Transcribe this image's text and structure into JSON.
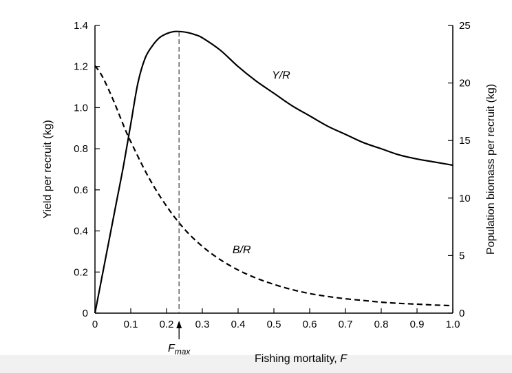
{
  "chart_data": {
    "type": "line",
    "xlabel": "Fishing mortality, ",
    "xlabel_var": "F",
    "ylabel": "Yield per recruit (kg)",
    "y2label": "Population biomass per recruit (kg)",
    "xlim": [
      0,
      1.0
    ],
    "ylim": [
      0,
      1.4
    ],
    "y2lim": [
      0,
      25
    ],
    "x_ticks": [
      0,
      0.1,
      0.2,
      0.3,
      0.4,
      0.5,
      0.6,
      0.7,
      0.8,
      0.9,
      1.0
    ],
    "x_tick_labels": [
      "0",
      "0.1",
      "0.2",
      "0.3",
      "0.4",
      "0.5",
      "0.6",
      "0.7",
      "0.8",
      "0.9",
      "1.0"
    ],
    "y_ticks": [
      0,
      0.2,
      0.4,
      0.6,
      0.8,
      1.0,
      1.2,
      1.4
    ],
    "y_tick_labels": [
      "0",
      "0.2",
      "0.4",
      "0.6",
      "0.8",
      "1.0",
      "1.2",
      "1.4"
    ],
    "y2_ticks": [
      0,
      5,
      10,
      15,
      20,
      25
    ],
    "y2_tick_labels": [
      "0",
      "5",
      "10",
      "15",
      "20",
      "25"
    ],
    "grid": false,
    "series": [
      {
        "name": "Y/R",
        "axis": "left",
        "style": "solid",
        "color": "#000000",
        "x": [
          0,
          0.02,
          0.04,
          0.06,
          0.08,
          0.1,
          0.12,
          0.14,
          0.16,
          0.18,
          0.2,
          0.22,
          0.24,
          0.26,
          0.28,
          0.3,
          0.35,
          0.4,
          0.45,
          0.5,
          0.55,
          0.6,
          0.65,
          0.7,
          0.75,
          0.8,
          0.85,
          0.9,
          0.95,
          1.0
        ],
        "values": [
          0,
          0.18,
          0.36,
          0.54,
          0.72,
          0.92,
          1.12,
          1.24,
          1.3,
          1.34,
          1.36,
          1.37,
          1.37,
          1.365,
          1.355,
          1.34,
          1.28,
          1.2,
          1.13,
          1.07,
          1.01,
          0.96,
          0.91,
          0.87,
          0.83,
          0.8,
          0.77,
          0.75,
          0.735,
          0.72
        ]
      },
      {
        "name": "B/R",
        "axis": "right",
        "style": "dashed",
        "color": "#000000",
        "x": [
          0,
          0.02,
          0.05,
          0.08,
          0.1,
          0.15,
          0.2,
          0.25,
          0.3,
          0.35,
          0.4,
          0.45,
          0.5,
          0.55,
          0.6,
          0.65,
          0.7,
          0.75,
          0.8,
          0.85,
          0.9,
          0.95,
          1.0
        ],
        "values": [
          21.5,
          20.6,
          18.6,
          16.3,
          14.9,
          11.8,
          9.3,
          7.3,
          5.8,
          4.65,
          3.75,
          3.05,
          2.5,
          2.05,
          1.7,
          1.45,
          1.25,
          1.1,
          0.95,
          0.85,
          0.78,
          0.7,
          0.65
        ]
      }
    ],
    "annotations": [
      {
        "label": "Y/R",
        "x": 0.52,
        "y": 1.14,
        "axis": "left"
      },
      {
        "label": "B/R",
        "x": 0.41,
        "y": 5.2,
        "axis": "right"
      },
      {
        "label": "F",
        "subscript": "max",
        "x": 0.235
      }
    ],
    "fmax": 0.235
  }
}
